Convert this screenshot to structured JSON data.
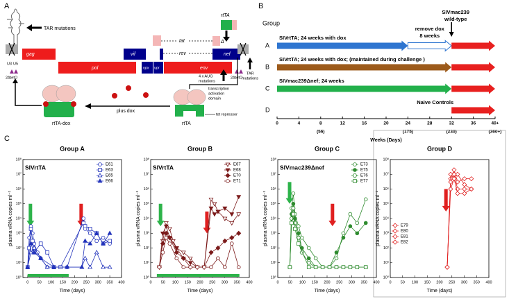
{
  "panel_a": {
    "label": "A",
    "tar_mutations": "TAR mutations",
    "rtta_gene": "rtTA",
    "gag": "gag",
    "pol": "pol",
    "vif": "vif",
    "vpx": "vpx",
    "vpr": "vpr",
    "tat": "tat",
    "rev": "rev",
    "env": "env",
    "nef": "nef",
    "delta": "Δ",
    "aug": [
      "4 x AUG",
      "mutations"
    ],
    "tar_right": [
      "TAR",
      "mutations"
    ],
    "u3": "U3",
    "u5": "U5",
    "teto_left": "2ΔtetO",
    "teto_right": "2ΔtetO",
    "activation": [
      "transcription",
      "activation",
      "domain"
    ],
    "tet_repressor": "tet repressor",
    "rtta_protein": "rtTA",
    "plus_dox": "plus dox",
    "rtta_dox": "rtTA-dox"
  },
  "panel_b": {
    "label": "B",
    "heading": "Group",
    "challenge": {
      "lines": [
        "SIVmac239",
        "wild-type"
      ],
      "week": 32
    },
    "remove_dox": {
      "lines": [
        "remove dox",
        "8 weeks"
      ],
      "color": "#1f3f8f"
    },
    "groups": [
      {
        "letter": "A",
        "text": "SIVrtTA; 24 weeks with dox",
        "text_color": "#2e75d0",
        "segments": [
          {
            "from": 0,
            "to": 24,
            "color": "#2e75d0"
          },
          {
            "from": 24,
            "to": 32,
            "color": "#ffffff",
            "outline": "#2e75d0"
          },
          {
            "from": 32,
            "to": 40,
            "color": "#e8201f"
          }
        ]
      },
      {
        "letter": "B",
        "text": "SIVrtTA; 24 weeks with dox;  (maintained during challenge )",
        "text_color": "#9c5a1a",
        "segments": [
          {
            "from": 0,
            "to": 32,
            "color": "#9c5a1a"
          },
          {
            "from": 32,
            "to": 40,
            "color": "#e8201f"
          }
        ]
      },
      {
        "letter": "C",
        "text": "SIVmac239Δnef; 24 weeks",
        "text_color": "#22b04b",
        "segments": [
          {
            "from": 0,
            "to": 32,
            "color": "#22b04b"
          },
          {
            "from": 32,
            "to": 40,
            "color": "#e8201f"
          }
        ]
      },
      {
        "letter": "D",
        "text": "Naive Controls",
        "text_color": "#000000",
        "segments": [
          {
            "from": 32,
            "to": 40,
            "color": "#e8201f"
          }
        ]
      }
    ],
    "xlim": [
      0,
      40
    ],
    "xticks": [
      0,
      4,
      8,
      12,
      16,
      20,
      24,
      28,
      32,
      36,
      {
        "value": 40,
        "label": "40+"
      }
    ],
    "day_labels": [
      {
        "value": 8,
        "label": "(56)"
      },
      {
        "value": 24,
        "label": "(175)"
      },
      {
        "value": 32,
        "label": "(230)"
      },
      {
        "value": 40,
        "label": "(360+)"
      }
    ],
    "xlabel": "Weeks  (Days)"
  },
  "panel_c_label": "C",
  "chart_data": [
    {
      "type": "line",
      "title": "Group A",
      "inner_label": "SIVrtTA",
      "xlabel": "Time (days)",
      "ylabel": "plasma vRNA copies ml⁻¹",
      "log_y": true,
      "legend": "upper right",
      "xlim": [
        -20,
        400
      ],
      "xticks": [
        0,
        50,
        100,
        150,
        200,
        250,
        300,
        350,
        400
      ],
      "ylim": [
        1,
        100000000
      ],
      "yticks": [
        {
          "value": 1,
          "label": "10⁰"
        },
        {
          "value": 10,
          "label": "10¹"
        },
        {
          "value": 100,
          "label": "10²"
        },
        {
          "value": 1000,
          "label": "10³"
        },
        {
          "value": 10000,
          "label": "10⁴"
        },
        {
          "value": 100000,
          "label": "10⁵"
        },
        {
          "value": 1000000,
          "label": "10⁶"
        },
        {
          "value": 10000000,
          "label": "10⁷"
        },
        {
          "value": 100000000,
          "label": "10⁸"
        }
      ],
      "arrows": [
        {
          "x": 12,
          "y_from": 100000,
          "y_to": 3000,
          "color": "#2db34a"
        },
        {
          "x": 228,
          "y_from": 100000,
          "y_to": 3000,
          "color": "#e02020"
        }
      ],
      "dox_bar": {
        "from": 0,
        "to": 175,
        "color": "#2db34a"
      },
      "series": [
        {
          "name": "E61",
          "color": "#2233bb",
          "marker": "circle",
          "x": [
            0,
            7,
            14,
            21,
            28,
            42,
            56,
            84,
            112,
            168,
            238,
            245,
            266,
            294,
            322,
            350
          ],
          "values": [
            5,
            500,
            3000,
            1000,
            200,
            50,
            20,
            5,
            5,
            5,
            10000,
            2000,
            1000,
            300,
            500,
            200
          ]
        },
        {
          "name": "E63",
          "color": "#2233bb",
          "marker": "square",
          "x": [
            0,
            7,
            14,
            21,
            28,
            56,
            84,
            112,
            140,
            238,
            245,
            266,
            294,
            322,
            350
          ],
          "values": [
            5,
            100,
            2000,
            300,
            50,
            200,
            50,
            5,
            5,
            5000,
            3000,
            2000,
            1000,
            200,
            300
          ]
        },
        {
          "name": "E65",
          "color": "#2233bb",
          "marker": "triangle",
          "x": [
            0,
            14,
            28,
            56,
            84,
            112,
            168,
            231,
            245,
            266,
            294,
            322,
            350
          ],
          "values": [
            5,
            50,
            100,
            20,
            5,
            5,
            5,
            5,
            20,
            5,
            50,
            5,
            5
          ]
        },
        {
          "name": "E66",
          "color": "#2233bb",
          "marker": "triangle-filled",
          "x": [
            0,
            14,
            28,
            56,
            112,
            168,
            231,
            245,
            266,
            294,
            322,
            350
          ],
          "values": [
            5,
            200,
            50,
            20,
            5,
            5,
            5,
            300,
            200,
            1000,
            200,
            1000
          ]
        }
      ]
    },
    {
      "type": "line",
      "title": "Group B",
      "inner_label": "SIVrtTA",
      "xlabel": "Time (days)",
      "ylabel": "plasma vRNA copies ml⁻¹",
      "log_y": true,
      "legend": "upper right",
      "xlim": [
        0,
        400
      ],
      "xticks": [
        0,
        50,
        100,
        150,
        200,
        250,
        300,
        350,
        400
      ],
      "ylim": [
        1,
        100000000
      ],
      "yticks": [
        {
          "value": 1,
          "label": "10⁰"
        },
        {
          "value": 10,
          "label": "10¹"
        },
        {
          "value": 100,
          "label": "10²"
        },
        {
          "value": 1000,
          "label": "10³"
        },
        {
          "value": 10000,
          "label": "10⁴"
        },
        {
          "value": 100000,
          "label": "10⁵"
        },
        {
          "value": 1000000,
          "label": "10⁶"
        },
        {
          "value": 10000000,
          "label": "10⁷"
        },
        {
          "value": 100000000,
          "label": "10⁸"
        }
      ],
      "arrows": [
        {
          "x": 40,
          "y_from": 100000,
          "y_to": 3000,
          "color": "#2db34a"
        },
        {
          "x": 228,
          "y_from": 30000,
          "y_to": 1000,
          "color": "#e02020"
        }
      ],
      "dox_bar": {
        "from": 25,
        "to": 360,
        "color": "#2db34a"
      },
      "series": [
        {
          "name": "E67",
          "color": "#7b1a1a",
          "marker": "triangle-down",
          "x": [
            35,
            49,
            63,
            77,
            91,
            105,
            133,
            161,
            189,
            217,
            245,
            259,
            273,
            301,
            329,
            357
          ],
          "values": [
            5,
            300,
            5000,
            2000,
            300,
            100,
            50,
            20,
            5,
            5,
            200000,
            100000,
            30000,
            10000,
            5000,
            20000
          ]
        },
        {
          "name": "E68",
          "color": "#7b1a1a",
          "marker": "triangle-down-filled",
          "x": [
            35,
            49,
            63,
            77,
            105,
            133,
            161,
            189,
            217,
            245,
            259,
            273,
            301,
            329,
            357
          ],
          "values": [
            5,
            1000,
            3000,
            500,
            100,
            20,
            10,
            5,
            5,
            50000,
            20000,
            30000,
            50000,
            20000,
            300000
          ]
        },
        {
          "name": "E70",
          "color": "#7b1a1a",
          "marker": "diamond-filled",
          "x": [
            35,
            49,
            63,
            77,
            105,
            133,
            161,
            189,
            217,
            245,
            273,
            301,
            329,
            357
          ],
          "values": [
            5,
            200,
            1000,
            500,
            50,
            20,
            5,
            5,
            5,
            50,
            100,
            300,
            500,
            1000
          ]
        },
        {
          "name": "E71",
          "color": "#7b1a1a",
          "marker": "circle",
          "x": [
            35,
            49,
            63,
            77,
            105,
            133,
            161,
            189,
            217,
            245,
            273,
            301,
            329,
            357
          ],
          "values": [
            5,
            50,
            500,
            200,
            20,
            5,
            5,
            5,
            5,
            5,
            20,
            5,
            200,
            5
          ]
        }
      ]
    },
    {
      "type": "line",
      "title": "Group C",
      "inner_label": "SIVmac239Δnef",
      "xlabel": "Time (days)",
      "ylabel": "plasma vRNA copies ml⁻¹",
      "log_y": true,
      "legend": "upper right",
      "xlim": [
        0,
        400
      ],
      "xticks": [
        0,
        50,
        100,
        150,
        200,
        250,
        300,
        350,
        400
      ],
      "ylim": [
        1,
        100000000
      ],
      "yticks": [
        {
          "value": 1,
          "label": "10⁰"
        },
        {
          "value": 10,
          "label": "10¹"
        },
        {
          "value": 100,
          "label": "10²"
        },
        {
          "value": 1000,
          "label": "10³"
        },
        {
          "value": 10000,
          "label": "10⁴"
        },
        {
          "value": 100000,
          "label": "10⁵"
        },
        {
          "value": 1000000,
          "label": "10⁶"
        },
        {
          "value": 10000000,
          "label": "10⁷"
        },
        {
          "value": 100000000,
          "label": "10⁸"
        }
      ],
      "arrows": [
        {
          "x": 48,
          "y_from": 3000000,
          "y_to": 100000,
          "color": "#2db34a"
        },
        {
          "x": 222,
          "y_from": 100000,
          "y_to": 3000,
          "color": "#e02020"
        }
      ],
      "series": [
        {
          "name": "E73",
          "color": "#2e8b2e",
          "marker": "circle",
          "x": [
            49,
            56,
            63,
            70,
            84,
            98,
            126,
            154,
            182,
            210,
            238,
            266,
            294,
            322,
            357
          ],
          "values": [
            5,
            50000,
            500000,
            20000,
            3000,
            500,
            100,
            20,
            5,
            5,
            20,
            1000,
            20000,
            5000,
            200000
          ]
        },
        {
          "name": "E75",
          "color": "#2e8b2e",
          "marker": "circle-filled",
          "x": [
            49,
            56,
            63,
            70,
            84,
            98,
            126,
            154,
            182,
            210,
            238,
            266,
            294,
            322,
            357
          ],
          "values": [
            5,
            20000,
            100000,
            10000,
            1000,
            100,
            20,
            5,
            5,
            5,
            50,
            500,
            3000,
            1000,
            5000
          ]
        },
        {
          "name": "E76",
          "color": "#2e8b2e",
          "marker": "hexagon",
          "x": [
            49,
            56,
            63,
            70,
            84,
            98,
            126,
            154,
            182,
            210,
            238,
            266,
            294,
            322,
            357
          ],
          "values": [
            5,
            10000,
            50000,
            5000,
            500,
            50,
            10,
            5,
            5,
            5,
            5,
            5,
            5,
            5,
            5
          ]
        },
        {
          "name": "E77",
          "color": "#2e8b2e",
          "marker": "square",
          "x": [
            49,
            56,
            63,
            70,
            84,
            126,
            154,
            182,
            210,
            238,
            266,
            294,
            322,
            357
          ],
          "values": [
            5,
            5000,
            20000,
            2000,
            200,
            5,
            5,
            5,
            5,
            5,
            5,
            5,
            5,
            5
          ]
        }
      ]
    },
    {
      "type": "line",
      "title": "Group D",
      "xlabel": "Time (days)",
      "ylabel": "plasma vRNA copies ml⁻¹",
      "log_y": true,
      "legend": "lower left",
      "xlim": [
        0,
        400
      ],
      "xticks": [
        0,
        50,
        100,
        150,
        200,
        250,
        300,
        350,
        400
      ],
      "ylim": [
        1,
        100000000
      ],
      "yticks": [
        {
          "value": 1,
          "label": "10⁰"
        },
        {
          "value": 10,
          "label": "10¹"
        },
        {
          "value": 100,
          "label": "10²"
        },
        {
          "value": 1000,
          "label": "10³"
        },
        {
          "value": 10000,
          "label": "10⁴"
        },
        {
          "value": 100000,
          "label": "10⁵"
        },
        {
          "value": 1000000,
          "label": "10⁶"
        },
        {
          "value": 10000000,
          "label": "10⁷"
        },
        {
          "value": 100000000,
          "label": "10⁸"
        }
      ],
      "arrows": [
        {
          "x": 226,
          "y_from": 1000000,
          "y_to": 30000,
          "color": "#e02020"
        }
      ],
      "series": [
        {
          "name": "E79",
          "color": "#e02020",
          "marker": "diamond",
          "x": [
            231,
            245,
            259,
            273,
            301,
            329
          ],
          "values": [
            5,
            5000000,
            20000000,
            3000000,
            5000000,
            5000000
          ]
        },
        {
          "name": "E80",
          "color": "#e02020",
          "marker": "diamond",
          "x": [
            231,
            245,
            259,
            273,
            301,
            329
          ],
          "values": [
            5,
            10000000,
            5000000,
            10000000,
            2000000,
            1000000
          ]
        },
        {
          "name": "E81",
          "color": "#e02020",
          "marker": "diamond",
          "x": [
            231,
            245,
            259,
            273,
            301,
            329
          ],
          "values": [
            5,
            3000000,
            10000000,
            1000000,
            1000000,
            1000000
          ]
        },
        {
          "name": "E82",
          "color": "#e02020",
          "marker": "diamond",
          "x": [
            231,
            245,
            259,
            273,
            301,
            329
          ],
          "values": [
            5,
            1000000,
            5000000,
            500000,
            500000,
            1000000
          ]
        }
      ]
    }
  ]
}
